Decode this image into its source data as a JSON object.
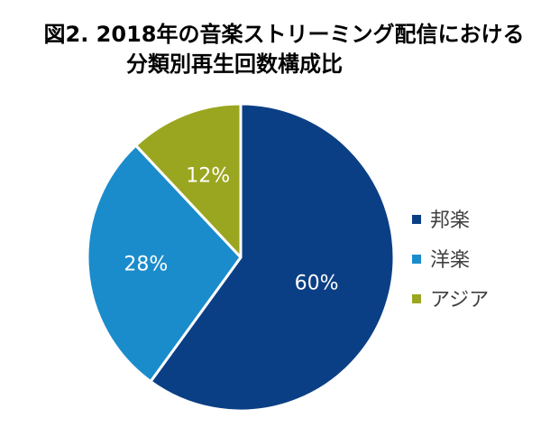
{
  "chart_data": {
    "type": "pie",
    "title_line1": "図2. 2018年の音楽ストリーミング配信における",
    "title_line2": "分類別再生回数構成比",
    "categories": [
      "邦楽",
      "洋楽",
      "アジア"
    ],
    "values": [
      60,
      28,
      12
    ],
    "labels": [
      "60%",
      "28%",
      "12%"
    ],
    "colors": [
      "#0b3f85",
      "#1b8ccb",
      "#9aa61f"
    ],
    "start_angle": "12 o'clock",
    "direction": "clockwise",
    "legend": "right"
  }
}
